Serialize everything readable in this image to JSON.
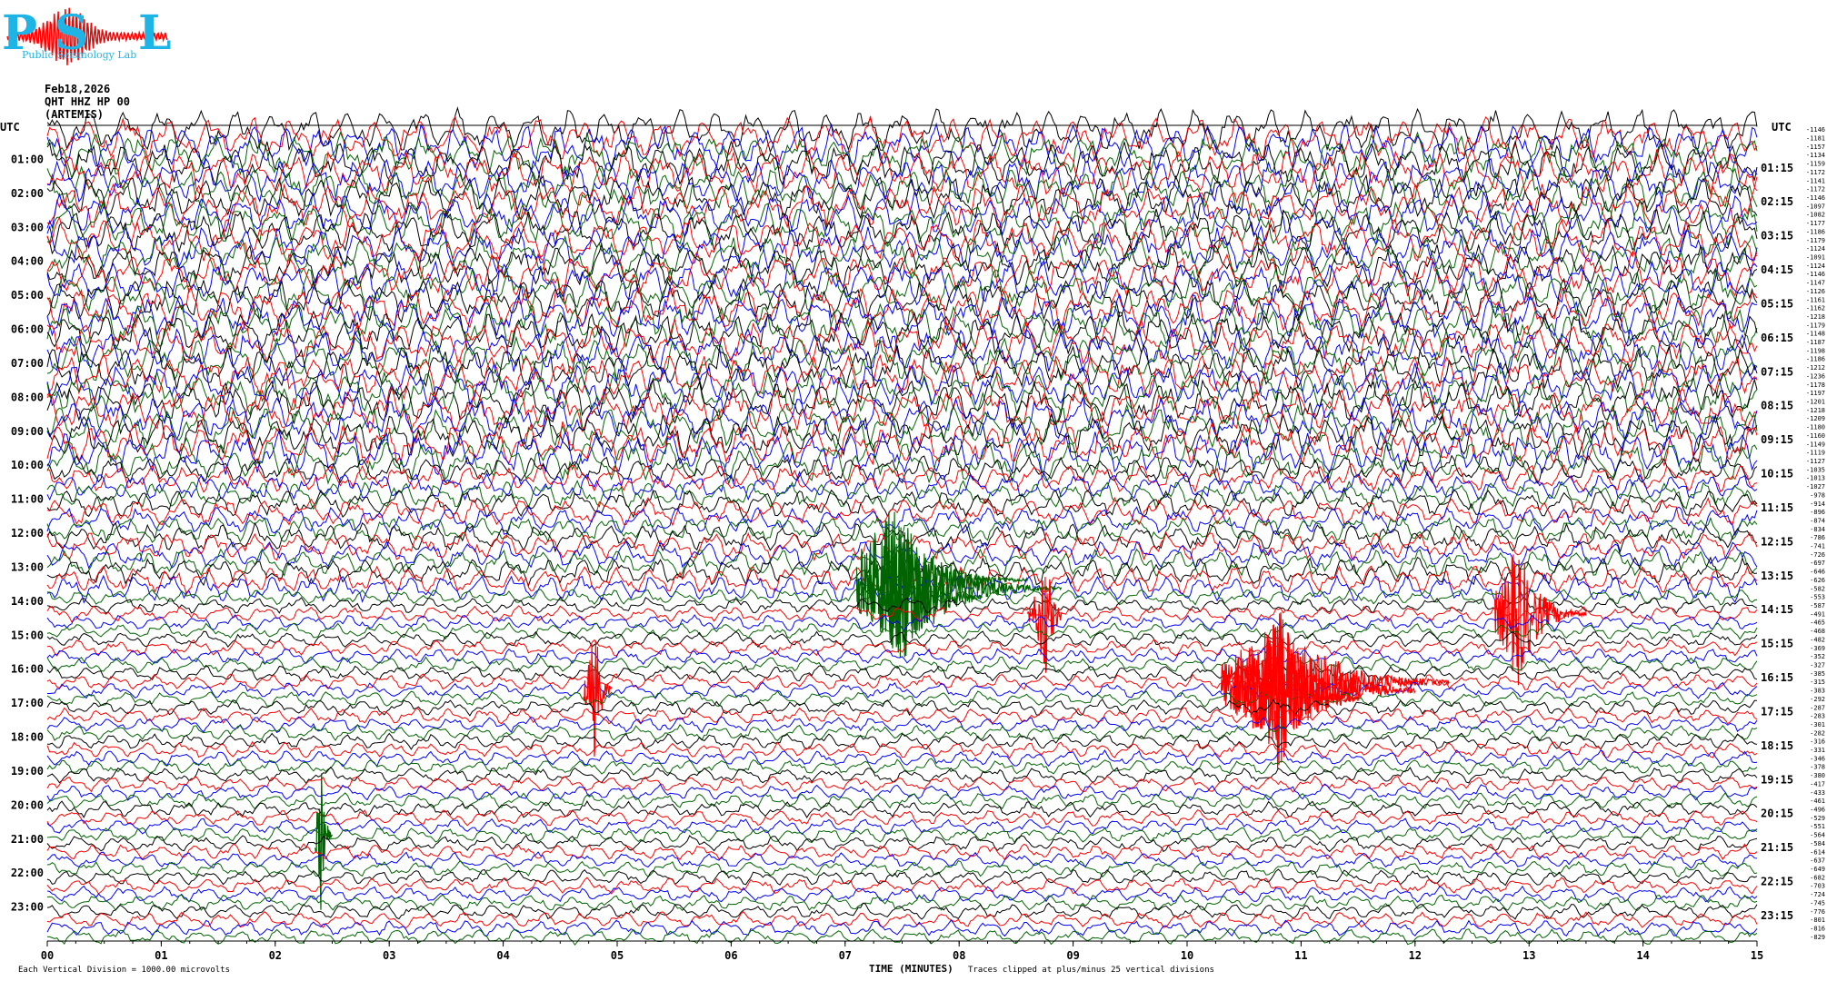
{
  "header": {
    "logo_letters": [
      "P",
      "S",
      "L"
    ],
    "logo_caption": "Public Seismology Lab",
    "date": "Feb18,2026",
    "station": "QHT HHZ HP 00",
    "filter": "(ARTEMIS)"
  },
  "footer": {
    "scale_note": "Each Vertical Division = 1000.00 microvolts",
    "axis_title": "TIME (MINUTES)",
    "clip_note": "Traces clipped at plus/minus 25 vertical divisions"
  },
  "colors": {
    "trace_cycle": [
      "#000000",
      "#ff0000",
      "#0000ff",
      "#006400"
    ],
    "logo": "#1fb4e6",
    "logo_wave": "#ff0000"
  },
  "chart_data": {
    "type": "line",
    "title": "",
    "xlabel": "TIME (MINUTES)",
    "ylabel": "",
    "xlim": [
      0,
      15
    ],
    "x_ticks": [
      "00",
      "01",
      "02",
      "03",
      "04",
      "05",
      "06",
      "07",
      "08",
      "09",
      "10",
      "11",
      "12",
      "13",
      "14",
      "15"
    ],
    "left_axis_title": "UTC",
    "right_axis_title": "UTC",
    "left_time_labels": [
      "01:00",
      "02:00",
      "03:00",
      "04:00",
      "05:00",
      "06:00",
      "07:00",
      "08:00",
      "09:00",
      "10:00",
      "11:00",
      "12:00",
      "13:00",
      "14:00",
      "15:00",
      "16:00",
      "17:00",
      "18:00",
      "19:00",
      "20:00",
      "21:00",
      "22:00",
      "23:00"
    ],
    "right_time_labels": [
      "01:15",
      "02:15",
      "03:15",
      "04:15",
      "05:15",
      "06:15",
      "07:15",
      "08:15",
      "09:15",
      "10:15",
      "11:15",
      "12:15",
      "13:15",
      "14:15",
      "15:15",
      "16:15",
      "17:15",
      "18:15",
      "19:15",
      "20:15",
      "21:15",
      "22:15",
      "23:15"
    ],
    "trace_minutes": 15,
    "trace_count": 96,
    "trace_offsets": [
      -1146,
      -1181,
      -1157,
      -1134,
      -1159,
      -1172,
      -1141,
      -1172,
      -1146,
      -1097,
      -1082,
      -1177,
      -1186,
      -1179,
      -1124,
      -1091,
      -1124,
      -1146,
      -1147,
      -1126,
      -1161,
      -1162,
      -1218,
      -1179,
      -1148,
      -1187,
      -1198,
      -1186,
      -1212,
      -1236,
      -1178,
      -1197,
      -1201,
      -1218,
      -1209,
      -1180,
      -1160,
      -1149,
      -1119,
      -1127,
      -1035,
      -1013,
      -1027,
      -978,
      -914,
      -896,
      -874,
      -834,
      -786,
      -741,
      -726,
      -697,
      -646,
      -626,
      -582,
      -553,
      -587,
      -491,
      -465,
      -468,
      -482,
      -369,
      -352,
      -327,
      -385,
      -315,
      -383,
      -292,
      -287,
      -283,
      -301,
      -282,
      -316,
      -331,
      -346,
      -378,
      -380,
      -417,
      -433,
      -461,
      -496,
      -529,
      -551,
      -564,
      -584,
      -614,
      -637,
      -649,
      -682,
      -703,
      -724,
      -745,
      -776,
      -801,
      -816,
      -829
    ],
    "events": [
      {
        "trace": 53,
        "start_min": 7.1,
        "end_min": 8.6,
        "color": "#006400",
        "peak_min": 7.4
      },
      {
        "trace": 54,
        "start_min": 7.1,
        "end_min": 8.9,
        "color": "#006400",
        "peak_min": 7.5
      },
      {
        "trace": 55,
        "start_min": 7.2,
        "end_min": 8.2,
        "color": "#006400",
        "peak_min": 7.5
      },
      {
        "trace": 57,
        "start_min": 8.6,
        "end_min": 8.9,
        "color": "#ff0000",
        "peak_min": 8.75
      },
      {
        "trace": 57,
        "start_min": 12.7,
        "end_min": 13.5,
        "color": "#ff0000",
        "peak_min": 12.9
      },
      {
        "trace": 66,
        "start_min": 4.7,
        "end_min": 4.95,
        "color": "#ff0000",
        "peak_min": 4.8
      },
      {
        "trace": 65,
        "start_min": 10.3,
        "end_min": 12.3,
        "color": "#ff0000",
        "peak_min": 10.8
      },
      {
        "trace": 66,
        "start_min": 10.3,
        "end_min": 12.0,
        "color": "#ff0000",
        "peak_min": 10.8
      },
      {
        "trace": 67,
        "start_min": 10.5,
        "end_min": 11.5,
        "color": "#ff0000",
        "peak_min": 10.8
      },
      {
        "trace": 83,
        "start_min": 2.35,
        "end_min": 2.5,
        "color": "#006400",
        "peak_min": 2.4
      }
    ]
  }
}
